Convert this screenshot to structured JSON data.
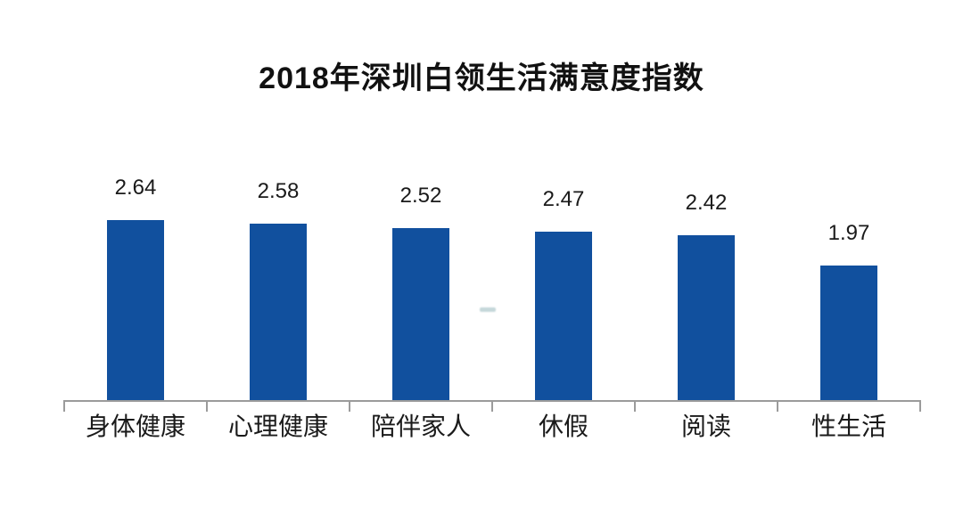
{
  "title": "2018年深圳白领生活满意度指数",
  "chart_data": {
    "type": "bar",
    "title": "2018年深圳白领生活满意度指数",
    "categories": [
      "身体健康",
      "心理健康",
      "陪伴家人",
      "休假",
      "阅读",
      "性生活"
    ],
    "values": [
      2.64,
      2.58,
      2.52,
      2.47,
      2.42,
      1.97
    ],
    "value_labels": [
      "2.64",
      "2.58",
      "2.52",
      "2.47",
      "2.42",
      "1.97"
    ],
    "xlabel": "",
    "ylabel": "",
    "ylim": [
      0,
      2.95
    ],
    "grid": false,
    "legend": false,
    "y_axis_visible": false,
    "bar_color": "#11509E",
    "axis_color": "#9B9B9B",
    "text_color": "#1A1A1A",
    "background_color": "#FFFFFF",
    "watermark_color": "#96B6BC"
  }
}
